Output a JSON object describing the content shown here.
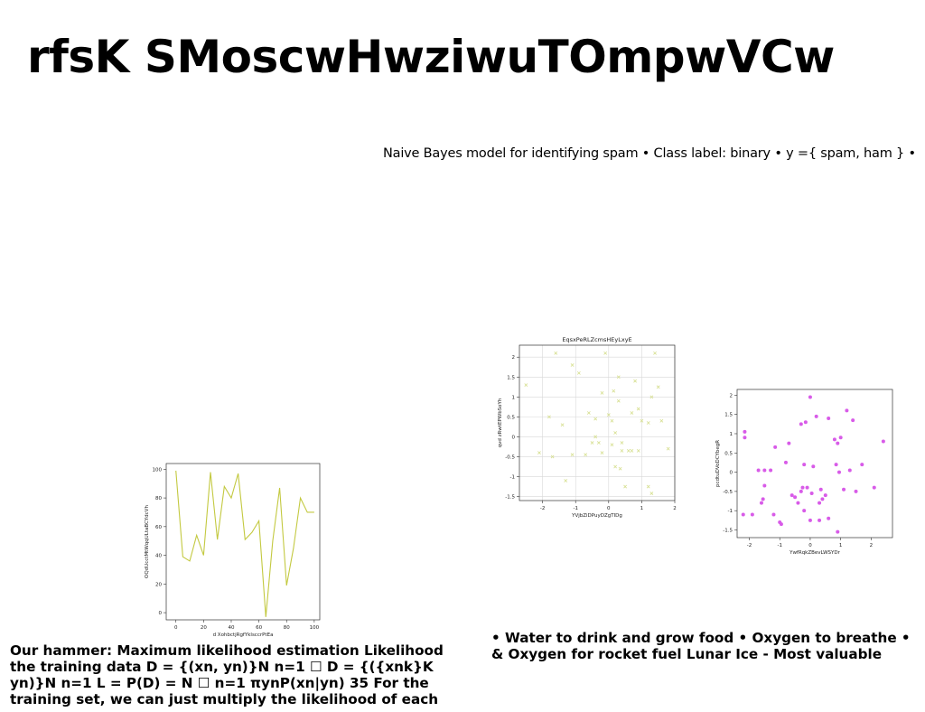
{
  "slide": {
    "title": "rfsK SMoscwHwziwuTOmpwVCw",
    "subtitle": "Naive Bayes model for identifying spam • Class label: binary • y ={ spam, ham } •",
    "body_left": "Our hammer: Maximum likelihood estimation Likelihood the training data D = {(xn, yn)}N n=1 ☐ D = {({xnk}K yn)}N n=1 L = P(D) = N ☐ n=1 πynP(xn|yn) 35 For the training set, we can just multiply the likelihood of each",
    "body_right": "• Water to drink and grow food • Oxygen to breathe • & Oxygen for rocket fuel Lunar Ice - Most valuable"
  },
  "chart_data": [
    {
      "type": "line",
      "title": "",
      "xlabel": "d XohbctjRgfYklsccrPtEa",
      "ylabel": "OQdUcctMtWqqULtaBCYdcVh",
      "xlim": [
        -7,
        104
      ],
      "ylim": [
        -5,
        104
      ],
      "xticks": [
        0,
        20,
        40,
        60,
        80,
        100
      ],
      "yticks": [
        0,
        20,
        40,
        60,
        80,
        100
      ],
      "grid": false,
      "color": "#c3c940",
      "series": [
        {
          "x": [
            0,
            5,
            10,
            15,
            20,
            25,
            30,
            35,
            40,
            45,
            50,
            55,
            60,
            65,
            70,
            75,
            80,
            85,
            90,
            95,
            100
          ],
          "values": [
            99,
            39,
            36,
            54,
            40,
            98,
            51,
            88,
            80,
            97,
            51,
            56,
            64,
            -3,
            50,
            87,
            19,
            45,
            80,
            70,
            70
          ]
        }
      ]
    },
    {
      "type": "scatter",
      "marker": "x",
      "title": "EqsxPeRLZcmsHEyLxyE",
      "xlabel": "YVjbZiDPuyDZgTIDg",
      "ylabel": "qvd zRwtEPWbSoYh",
      "xlim": [
        -2.7,
        2.0
      ],
      "ylim": [
        -1.6,
        2.3
      ],
      "xticks": [
        -2,
        -1,
        0,
        1,
        2
      ],
      "yticks": [
        -1.5,
        -1.0,
        -0.5,
        0.0,
        0.5,
        1.0,
        1.5,
        2.0
      ],
      "grid": true,
      "color": "#d6df8f",
      "series": [
        {
          "x": [
            -2.5,
            -2.1,
            -1.8,
            -1.7,
            -1.6,
            -1.4,
            -1.3,
            -1.1,
            -1.1,
            -0.9,
            -0.7,
            -0.6,
            -0.5,
            -0.4,
            -0.4,
            -0.3,
            -0.2,
            -0.2,
            -0.1,
            0.0,
            0.1,
            0.1,
            0.15,
            0.2,
            0.2,
            0.3,
            0.3,
            0.35,
            0.4,
            0.4,
            0.5,
            0.6,
            0.7,
            0.7,
            0.8,
            0.9,
            0.9,
            1.0,
            1.2,
            1.2,
            1.3,
            1.3,
            1.4,
            1.5,
            1.6,
            1.8
          ],
          "values": [
            1.3,
            -0.4,
            0.5,
            -0.5,
            2.1,
            0.3,
            -1.1,
            1.8,
            -0.45,
            1.6,
            -0.45,
            0.6,
            -0.15,
            0.0,
            0.45,
            -0.15,
            1.1,
            -0.4,
            2.1,
            0.55,
            0.4,
            -0.2,
            1.15,
            0.1,
            -0.75,
            1.5,
            0.9,
            -0.8,
            -0.15,
            -0.35,
            -1.25,
            -0.35,
            -0.35,
            0.6,
            1.4,
            -0.35,
            0.7,
            0.4,
            -1.25,
            0.35,
            -1.42,
            1.0,
            2.1,
            1.25,
            0.4,
            -0.3
          ]
        }
      ]
    },
    {
      "type": "scatter",
      "marker": "o",
      "title": "",
      "xlabel": "YwfRqkZBevLWSYDr",
      "ylabel": "pcdtuDVoDCYbegR",
      "xlim": [
        -2.4,
        2.7
      ],
      "ylim": [
        -1.7,
        2.15
      ],
      "xticks": [
        -2,
        -1,
        0,
        1,
        2
      ],
      "yticks": [
        -1.5,
        -1.0,
        -0.5,
        0.0,
        0.5,
        1.0,
        1.5,
        2.0
      ],
      "grid": false,
      "color": "#d85be8",
      "series": [
        {
          "x": [
            -2.2,
            -2.15,
            -2.15,
            -1.9,
            -1.7,
            -1.6,
            -1.55,
            -1.5,
            -1.5,
            -1.3,
            -1.2,
            -1.15,
            -1.0,
            -0.95,
            -0.8,
            -0.7,
            -0.6,
            -0.5,
            -0.4,
            -0.3,
            -0.3,
            -0.25,
            -0.2,
            -0.2,
            -0.15,
            -0.1,
            0.0,
            0.0,
            0.05,
            0.1,
            0.2,
            0.3,
            0.3,
            0.35,
            0.4,
            0.5,
            0.6,
            0.6,
            0.8,
            0.85,
            0.9,
            0.9,
            0.95,
            1.0,
            1.1,
            1.2,
            1.3,
            1.4,
            1.5,
            1.7,
            2.1,
            2.4
          ],
          "values": [
            -1.1,
            1.05,
            0.9,
            -1.1,
            0.05,
            -0.8,
            -0.7,
            -0.35,
            0.05,
            0.05,
            -1.1,
            0.65,
            -1.3,
            -1.35,
            0.25,
            0.75,
            -0.6,
            -0.65,
            -0.8,
            -0.5,
            1.25,
            -0.4,
            0.2,
            -1.0,
            1.3,
            -0.4,
            -1.25,
            1.95,
            -0.55,
            0.15,
            1.45,
            -1.25,
            -0.8,
            -0.45,
            -0.7,
            -0.6,
            -1.2,
            1.4,
            0.85,
            0.2,
            -1.55,
            0.75,
            0.0,
            0.9,
            -0.45,
            1.6,
            0.05,
            1.35,
            -0.5,
            0.2,
            -0.4,
            0.8
          ]
        }
      ]
    }
  ]
}
